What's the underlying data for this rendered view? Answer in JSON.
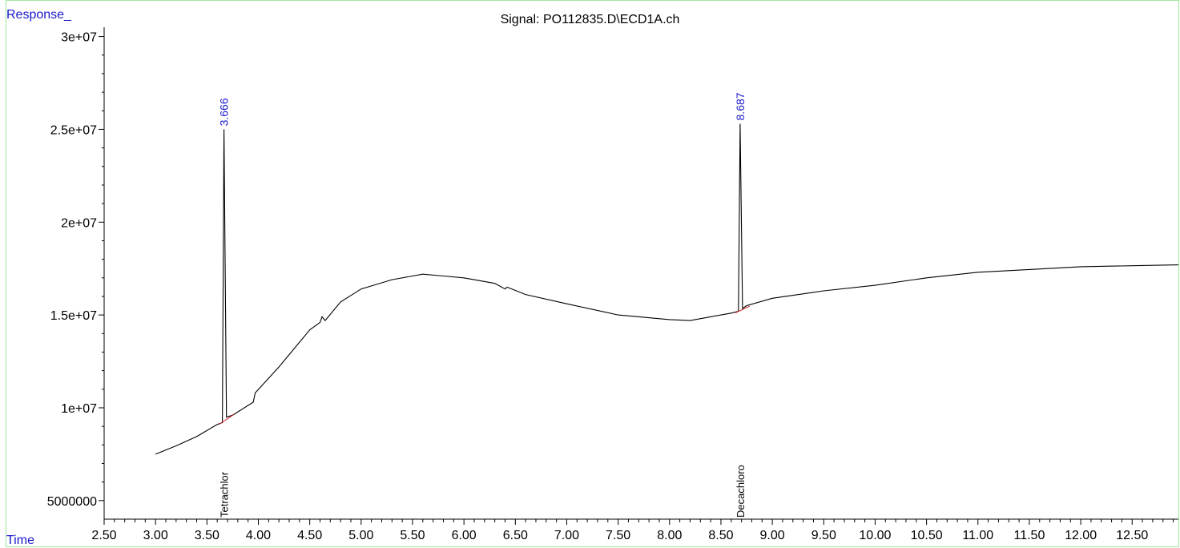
{
  "chart_data": {
    "type": "line",
    "title": "Signal: PO112835.D\\ECD1A.ch",
    "ylabel": "Response_",
    "xlabel": "Time",
    "xlim": [
      2.5,
      12.95
    ],
    "ylim": [
      4000000,
      30500000
    ],
    "x_ticks": [
      2.5,
      3.0,
      3.5,
      4.0,
      4.5,
      5.0,
      5.5,
      6.0,
      6.5,
      7.0,
      7.5,
      8.0,
      8.5,
      9.0,
      9.5,
      10.0,
      10.5,
      11.0,
      11.5,
      12.0,
      12.5
    ],
    "x_tick_labels": [
      "2.50",
      "3.00",
      "3.50",
      "4.00",
      "4.50",
      "5.00",
      "5.50",
      "6.00",
      "6.50",
      "7.00",
      "7.50",
      "8.00",
      "8.50",
      "9.00",
      "9.50",
      "10.00",
      "10.50",
      "11.00",
      "11.50",
      "12.00",
      "12.50"
    ],
    "y_ticks": [
      5000000,
      10000000,
      15000000,
      20000000,
      25000000,
      30000000
    ],
    "y_tick_labels": [
      "5000000",
      "1e+07",
      "1.5e+07",
      "2e+07",
      "2.5e+07",
      "3e+07"
    ],
    "grid": false,
    "series": [
      {
        "x": [
          3.0,
          3.2,
          3.4,
          3.6,
          3.65,
          3.666,
          3.69,
          3.75,
          3.95,
          3.97,
          4.2,
          4.5,
          4.6,
          4.62,
          4.65,
          4.8,
          5.0,
          5.3,
          5.6,
          5.8,
          6.0,
          6.3,
          6.4,
          6.42,
          6.6,
          7.0,
          7.5,
          8.0,
          8.2,
          8.4,
          8.6,
          8.67,
          8.687,
          8.71,
          8.75,
          9.0,
          9.5,
          10.0,
          10.5,
          11.0,
          11.5,
          12.0,
          12.5,
          12.95
        ],
        "y": [
          7500000,
          7950000,
          8450000,
          9100000,
          9200000,
          25000000,
          9500000,
          9600000,
          10300000,
          10800000,
          12200000,
          14200000,
          14600000,
          14900000,
          14700000,
          15700000,
          16400000,
          16900000,
          17200000,
          17100000,
          17000000,
          16700000,
          16400000,
          16500000,
          16100000,
          15600000,
          15000000,
          14750000,
          14700000,
          14900000,
          15100000,
          15200000,
          25300000,
          15350000,
          15500000,
          15900000,
          16300000,
          16600000,
          17000000,
          17300000,
          17450000,
          17600000,
          17650000,
          17700000
        ]
      }
    ],
    "peaks": [
      {
        "rt": "3.666",
        "x": 3.666,
        "y": 25000000,
        "compound": "Tetrachlor"
      },
      {
        "rt": "8.687",
        "x": 8.687,
        "y": 25300000,
        "compound": "Decachloro"
      }
    ],
    "colors": {
      "trace": "#000000",
      "axis": "#000000",
      "rt_label": "#1a1acc",
      "axis_title": "#1a1acc",
      "baseline": "#d02020",
      "frame": "#9ee79e"
    }
  }
}
